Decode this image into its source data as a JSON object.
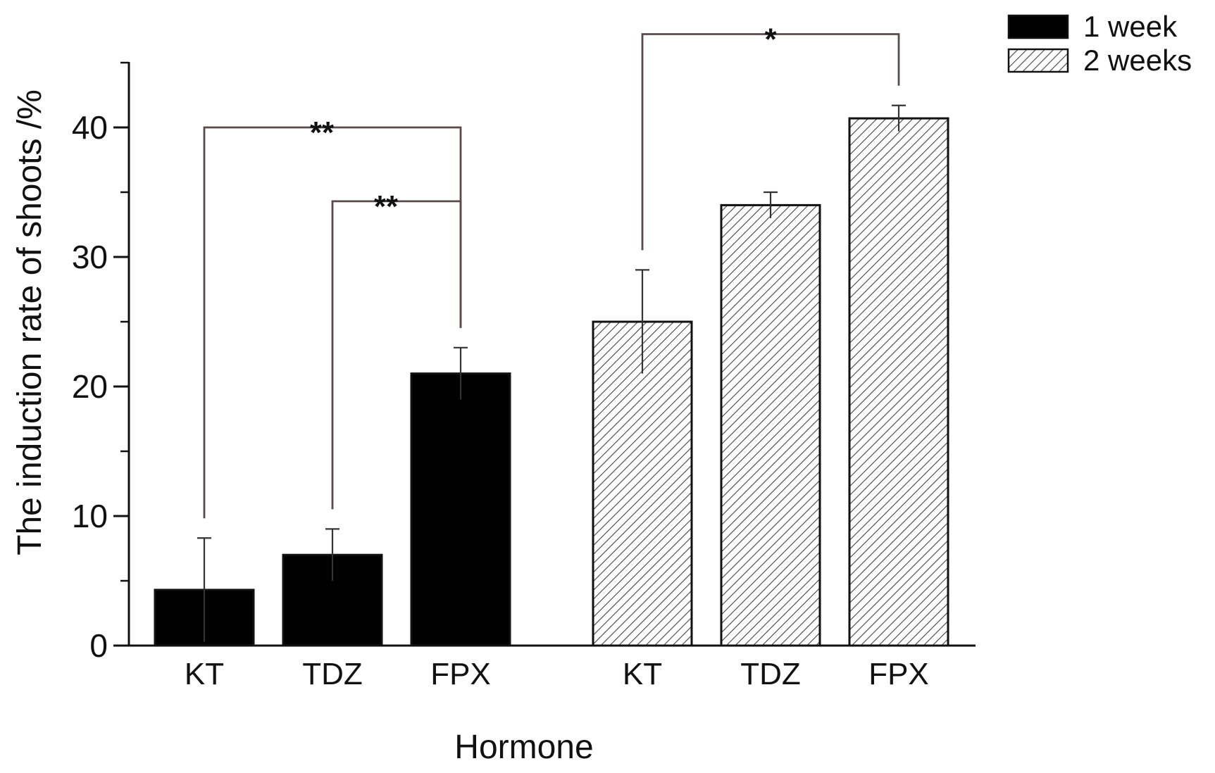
{
  "chart_data": {
    "type": "bar",
    "title": "",
    "xlabel": "Hormone",
    "ylabel": "The induction rate of shoots /%",
    "ylim": [
      0,
      45
    ],
    "yticks": [
      0,
      10,
      20,
      30,
      40
    ],
    "categories": [
      "KT",
      "TDZ",
      "FPX"
    ],
    "series": [
      {
        "name": "1 week",
        "pattern": "solid",
        "color": "#000000",
        "values": [
          4.3,
          7.0,
          21.0
        ],
        "errors": [
          4.0,
          2.0,
          2.0
        ]
      },
      {
        "name": "2 weeks",
        "pattern": "hatch",
        "color": "#555555",
        "values": [
          25.0,
          34.0,
          40.7
        ],
        "errors": [
          4.0,
          1.0,
          1.0
        ]
      }
    ],
    "significance": [
      {
        "series": 0,
        "from": 0,
        "to": 2,
        "label": "**",
        "height": 40
      },
      {
        "series": 0,
        "from": 1,
        "to": 2,
        "label": "**",
        "height": 34.3
      },
      {
        "series": 1,
        "from": 0,
        "to": 2,
        "label": "*",
        "height": 47.2
      }
    ],
    "legend": {
      "position": "top-right"
    }
  }
}
